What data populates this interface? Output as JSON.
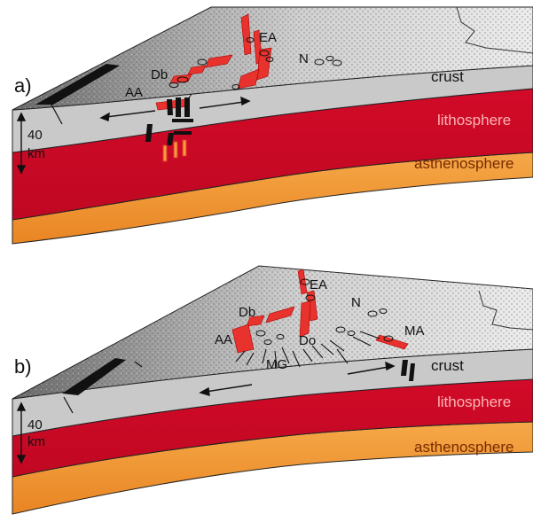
{
  "panels": [
    {
      "letter": "a)",
      "layers": {
        "crust": "crust",
        "lithosphere": "lithosphere",
        "asthenosphere": "asthenosphere"
      },
      "scale": {
        "value": "40",
        "unit": "km"
      },
      "features": {
        "ea": "EA",
        "n": "N",
        "db": "Db",
        "aa": "AA"
      }
    },
    {
      "letter": "b)",
      "layers": {
        "crust": "crust",
        "lithosphere": "lithosphere",
        "asthenosphere": "asthenosphere"
      },
      "scale": {
        "value": "40",
        "unit": "km"
      },
      "features": {
        "ea": "EA",
        "n": "N",
        "db": "Db",
        "aa": "AA",
        "do": "Do",
        "mg": "MG",
        "ma": "MA"
      }
    }
  ],
  "colors": {
    "crust": "#c8c8c8",
    "lithosphere": "#d40b2a",
    "asthenosphere": "#f29c3c",
    "volcanic": "#e8322d",
    "outline": "#222222"
  }
}
